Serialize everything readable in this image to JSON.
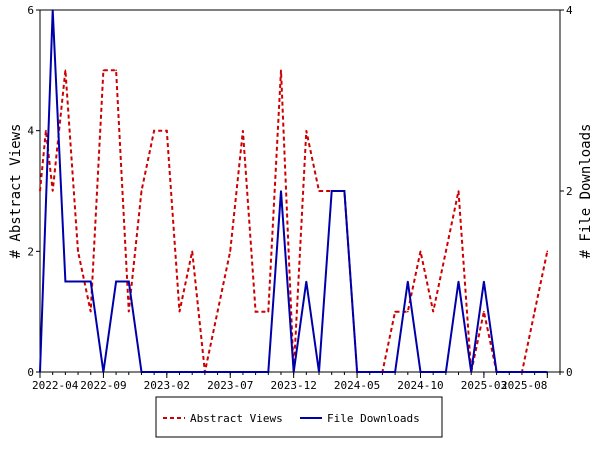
{
  "chart_data": {
    "type": "line",
    "title": "",
    "ylabel_left": "# Abstract Views",
    "ylabel_right": "# File Downloads",
    "ylim_left": [
      0,
      6
    ],
    "ylim_right": [
      0,
      4
    ],
    "yticks_left": [
      "0",
      "2",
      "4",
      "6"
    ],
    "yticks_right": [
      "0",
      "2",
      "4"
    ],
    "x_range_months": [
      "2022-04",
      "2025-09"
    ],
    "xtick_labels": [
      "2022-04",
      "2022-09",
      "2023-02",
      "2023-07",
      "2023-12",
      "2024-05",
      "2024-10",
      "2025-03",
      "2025-08"
    ],
    "legend_position": "bottom-center",
    "series": [
      {
        "name": "Abstract Views",
        "axis": "left",
        "color": "#cc0000",
        "style": "dashed",
        "points": [
          [
            "2022-04-01",
            3
          ],
          [
            "2022-04-15",
            4
          ],
          [
            "2022-05-01",
            3
          ],
          [
            "2022-06-01",
            5
          ],
          [
            "2022-07-01",
            2
          ],
          [
            "2022-08-01",
            1
          ],
          [
            "2022-09-01",
            5
          ],
          [
            "2022-10-01",
            5
          ],
          [
            "2022-11-01",
            1
          ],
          [
            "2022-12-01",
            3
          ],
          [
            "2023-01-01",
            4
          ],
          [
            "2023-02-01",
            4
          ],
          [
            "2023-03-01",
            1
          ],
          [
            "2023-04-01",
            2
          ],
          [
            "2023-05-01",
            0
          ],
          [
            "2023-07-01",
            2
          ],
          [
            "2023-08-01",
            4
          ],
          [
            "2023-09-01",
            1
          ],
          [
            "2023-10-01",
            1
          ],
          [
            "2023-11-01",
            5
          ],
          [
            "2023-12-01",
            0
          ],
          [
            "2024-01-01",
            4
          ],
          [
            "2024-02-01",
            3
          ],
          [
            "2024-03-01",
            3
          ],
          [
            "2024-04-01",
            3
          ],
          [
            "2024-05-01",
            0
          ],
          [
            "2024-06-01",
            0
          ],
          [
            "2024-07-01",
            0
          ],
          [
            "2024-08-01",
            1
          ],
          [
            "2024-09-01",
            1
          ],
          [
            "2024-10-01",
            2
          ],
          [
            "2024-11-01",
            1
          ],
          [
            "2024-12-01",
            2
          ],
          [
            "2025-01-01",
            3
          ],
          [
            "2025-02-01",
            0
          ],
          [
            "2025-03-01",
            1
          ],
          [
            "2025-04-01",
            0
          ],
          [
            "2025-05-01",
            0
          ],
          [
            "2025-06-01",
            0
          ],
          [
            "2025-07-01",
            1
          ],
          [
            "2025-08-01",
            2
          ]
        ]
      },
      {
        "name": "File Downloads",
        "axis": "right",
        "color": "#0000aa",
        "style": "solid",
        "points": [
          [
            "2022-04-01",
            0
          ],
          [
            "2022-05-01",
            4
          ],
          [
            "2022-06-01",
            1
          ],
          [
            "2022-07-01",
            1
          ],
          [
            "2022-08-01",
            1
          ],
          [
            "2022-09-01",
            0
          ],
          [
            "2022-10-01",
            1
          ],
          [
            "2022-11-01",
            1
          ],
          [
            "2022-12-01",
            0
          ],
          [
            "2023-01-01",
            0
          ],
          [
            "2023-09-01",
            0
          ],
          [
            "2023-10-01",
            0
          ],
          [
            "2023-11-01",
            2
          ],
          [
            "2023-12-01",
            0
          ],
          [
            "2024-01-01",
            1
          ],
          [
            "2024-02-01",
            0
          ],
          [
            "2024-03-01",
            2
          ],
          [
            "2024-04-01",
            2
          ],
          [
            "2024-05-01",
            0
          ],
          [
            "2024-08-01",
            0
          ],
          [
            "2024-09-01",
            1
          ],
          [
            "2024-10-01",
            0
          ],
          [
            "2024-12-01",
            0
          ],
          [
            "2025-01-01",
            1
          ],
          [
            "2025-02-01",
            0
          ],
          [
            "2025-03-01",
            1
          ],
          [
            "2025-04-01",
            0
          ],
          [
            "2025-08-01",
            0
          ]
        ]
      }
    ]
  }
}
